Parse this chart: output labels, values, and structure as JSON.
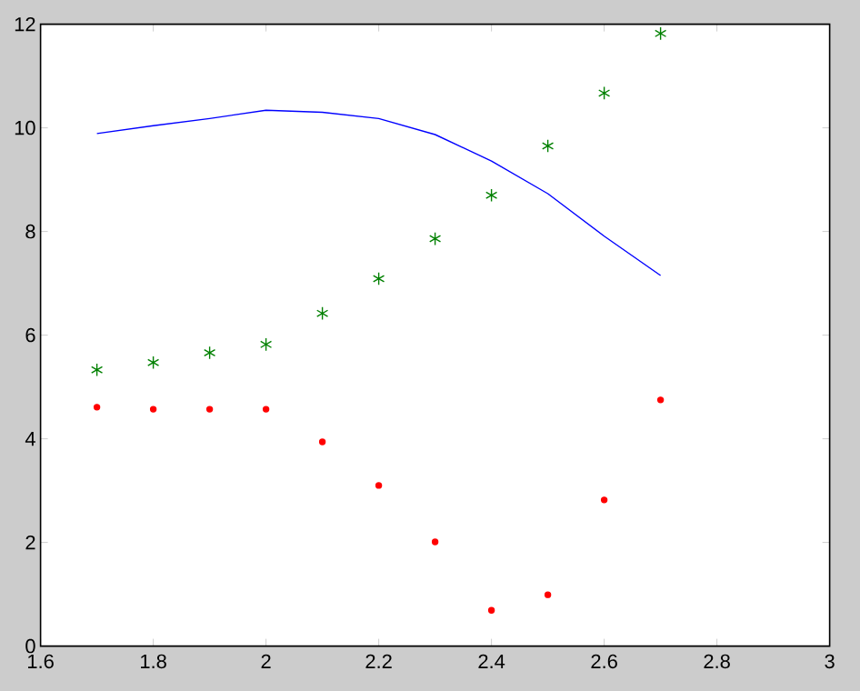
{
  "chart_data": {
    "type": "scatter",
    "x": [
      1.7,
      1.8,
      1.9,
      2.0,
      2.1,
      2.2,
      2.3,
      2.4,
      2.5,
      2.6,
      2.7
    ],
    "series": [
      {
        "type": "line",
        "color": "#0000ff",
        "marker": "none",
        "values": [
          9.89,
          10.04,
          10.18,
          10.34,
          10.3,
          10.18,
          9.87,
          9.36,
          8.73,
          7.91,
          7.15
        ]
      },
      {
        "color": "#008000",
        "marker": "cross",
        "values": [
          5.33,
          5.47,
          5.66,
          5.82,
          6.42,
          7.09,
          7.86,
          8.7,
          9.65,
          10.67,
          11.82
        ]
      },
      {
        "color": "#ff0000",
        "marker": "circle",
        "values": [
          4.61,
          4.57,
          4.57,
          4.57,
          3.94,
          3.1,
          2.01,
          0.69,
          0.99,
          2.82,
          4.75
        ]
      }
    ],
    "xlim": [
      1.6,
      3
    ],
    "ylim": [
      0,
      12
    ],
    "xticks": [
      1.6,
      1.8,
      2,
      2.2,
      2.4,
      2.6,
      2.8,
      3
    ],
    "yticks": [
      0,
      2,
      4,
      6,
      8,
      10,
      12
    ],
    "grid": false
  }
}
